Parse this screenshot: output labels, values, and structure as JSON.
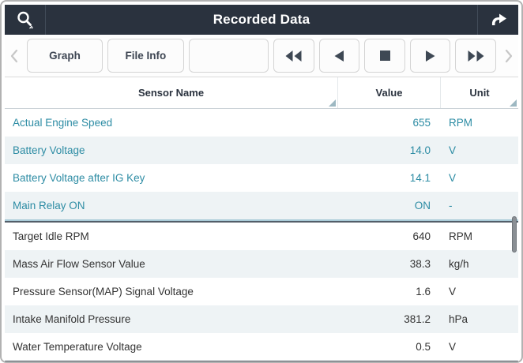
{
  "header": {
    "title": "Recorded Data",
    "left_icon": "search-icon",
    "right_icon": "return-arrow-icon"
  },
  "toolbar": {
    "nav_buttons": [
      {
        "label": "Graph"
      },
      {
        "label": "File Info"
      },
      {
        "label": ""
      }
    ],
    "media_buttons": [
      {
        "name": "rewind",
        "icon": "rewind-icon"
      },
      {
        "name": "step-back",
        "icon": "step-back-icon"
      },
      {
        "name": "stop",
        "icon": "stop-icon"
      },
      {
        "name": "play",
        "icon": "play-icon"
      },
      {
        "name": "fast-forward",
        "icon": "fast-forward-icon"
      }
    ],
    "page_prev_icon": "chevron-left-icon",
    "page_next_icon": "chevron-right-icon"
  },
  "table": {
    "columns": [
      {
        "label": "Sensor Name",
        "resize_handle": true
      },
      {
        "label": "Value",
        "resize_handle": false
      },
      {
        "label": "Unit",
        "resize_handle": true
      }
    ],
    "separator_after_index": 3,
    "rows": [
      {
        "name": "Actual Engine Speed",
        "value": "655",
        "unit": "RPM",
        "highlighted": true
      },
      {
        "name": "Battery Voltage",
        "value": "14.0",
        "unit": "V",
        "highlighted": true
      },
      {
        "name": "Battery Voltage after IG Key",
        "value": "14.1",
        "unit": "V",
        "highlighted": true
      },
      {
        "name": "Main Relay ON",
        "value": "ON",
        "unit": "-",
        "highlighted": true
      },
      {
        "name": "Target Idle RPM",
        "value": "640",
        "unit": "RPM",
        "highlighted": false
      },
      {
        "name": "Mass Air Flow Sensor Value",
        "value": "38.3",
        "unit": "kg/h",
        "highlighted": false
      },
      {
        "name": "Pressure Sensor(MAP) Signal Voltage",
        "value": "1.6",
        "unit": "V",
        "highlighted": false
      },
      {
        "name": "Intake Manifold Pressure",
        "value": "381.2",
        "unit": "hPa",
        "highlighted": false
      },
      {
        "name": "Water Temperature Voltage",
        "value": "0.5",
        "unit": "V",
        "highlighted": false
      }
    ]
  },
  "colors": {
    "titlebar_bg": "#2a323e",
    "highlight_text": "#2d8ca4",
    "row_alt_bg": "#eef3f5",
    "media_icon": "#3e4854",
    "separator_top": "#a9cbd8",
    "separator_bottom": "#535e69"
  }
}
